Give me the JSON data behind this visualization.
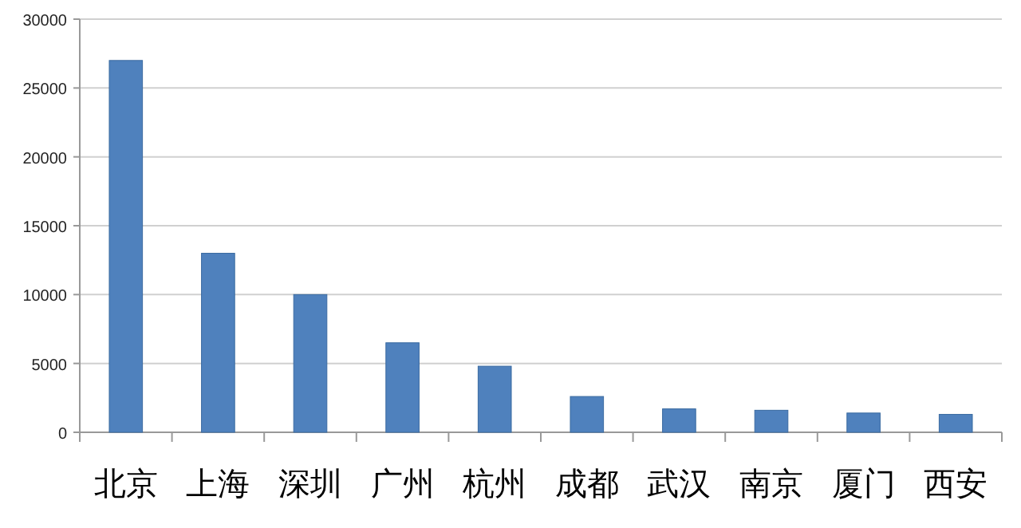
{
  "chart_data": {
    "type": "bar",
    "categories": [
      "北京",
      "上海",
      "深圳",
      "广州",
      "杭州",
      "成都",
      "武汉",
      "南京",
      "厦门",
      "西安"
    ],
    "values": [
      27000,
      13000,
      10000,
      6500,
      4800,
      2600,
      1700,
      1600,
      1400,
      1300
    ],
    "color": "#4f81bd",
    "ylim": [
      0,
      30000
    ],
    "yticks": [
      0,
      5000,
      10000,
      15000,
      20000,
      25000,
      30000
    ],
    "grid": "y"
  }
}
